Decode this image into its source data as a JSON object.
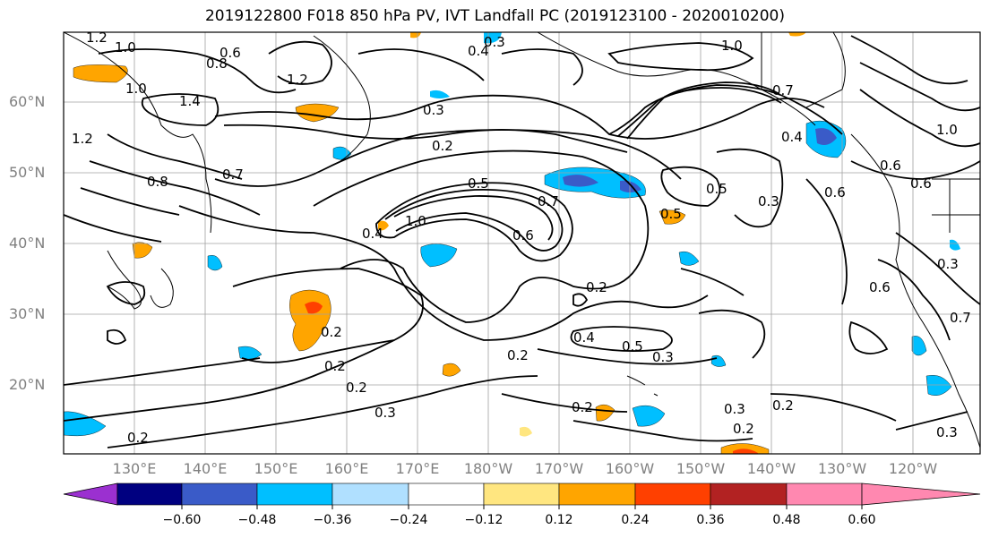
{
  "title": "2019122800 F018 850 hPa PV, IVT Landfall PC (2019123100 - 2020010200)",
  "lat_labels": [
    "60°N",
    "50°N",
    "40°N",
    "30°N",
    "20°N"
  ],
  "lon_labels": [
    "130°E",
    "140°E",
    "150°E",
    "160°E",
    "170°E",
    "180°W",
    "170°W",
    "160°W",
    "150°W",
    "140°W",
    "130°W",
    "120°W"
  ],
  "colorbar": {
    "ticks": [
      "−0.60",
      "−0.48",
      "−0.36",
      "−0.24",
      "−0.12",
      "0.12",
      "0.24",
      "0.36",
      "0.48",
      "0.60"
    ],
    "colors": [
      "#9b30d0",
      "#000080",
      "#3a5bc8",
      "#00bfff",
      "#b0e0ff",
      "#ffffff",
      "#ffe680",
      "#ffa500",
      "#ff4000",
      "#b22222",
      "#ff88b0"
    ]
  },
  "contour_labels": [
    "1.2",
    "1.0",
    "0.6",
    "0.8",
    "1.0",
    "1.2",
    "1.4",
    "1.2",
    "0.4",
    "0.3",
    "1.0",
    "0.7",
    "0.3",
    "0.2",
    "0.8",
    "0.7",
    "0.5",
    "1.0",
    "0.4",
    "0.7",
    "0.5",
    "0.6",
    "0.3",
    "0.5",
    "0.4",
    "0.6",
    "0.6",
    "0.2",
    "0.4",
    "0.5",
    "0.3",
    "0.2",
    "0.3",
    "0.3",
    "0.2",
    "0.2",
    "0.2",
    "0.2",
    "0.3",
    "0.2",
    "0.7",
    "0.6",
    "1.0",
    "0.6",
    "0.3",
    "0.2",
    "0.2"
  ]
}
